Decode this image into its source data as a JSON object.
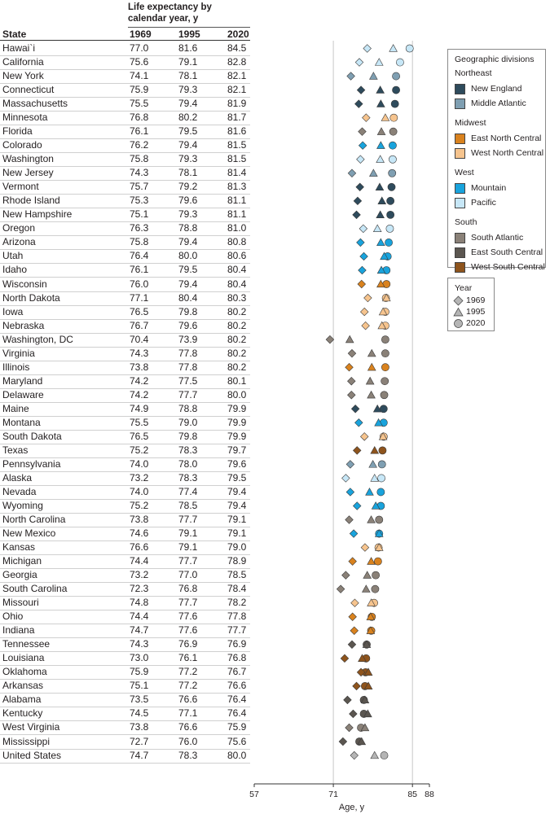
{
  "chart_data": {
    "type": "scatter",
    "table_header": {
      "title": "Life expectancy by calendar year, y",
      "state_col": "State",
      "years": [
        "1969",
        "1995",
        "2020"
      ]
    },
    "xlabel": "Age, y",
    "xticks": [
      "57",
      "71",
      "85",
      "88"
    ],
    "xlim": [
      57,
      88
    ],
    "legend_divisions_title": "Geographic divisions",
    "regions": [
      {
        "name": "Northeast",
        "divisions": [
          {
            "key": "NE",
            "label": "New England",
            "color": "#2e4b5c"
          },
          {
            "key": "MA",
            "label": "Middle Atlantic",
            "color": "#7f9fb2"
          }
        ]
      },
      {
        "name": "Midwest",
        "divisions": [
          {
            "key": "ENC",
            "label": "East North Central",
            "color": "#d9821e"
          },
          {
            "key": "WNC",
            "label": "West North Central",
            "color": "#f6c48e"
          }
        ]
      },
      {
        "name": "West",
        "divisions": [
          {
            "key": "MT",
            "label": "Mountain",
            "color": "#19a3dc"
          },
          {
            "key": "PA",
            "label": "Pacific",
            "color": "#c7e7f7"
          }
        ]
      },
      {
        "name": "South",
        "divisions": [
          {
            "key": "SA",
            "label": "South Atlantic",
            "color": "#8a8178"
          },
          {
            "key": "ESC",
            "label": "East South Central",
            "color": "#5b5650"
          },
          {
            "key": "WSC",
            "label": "West South Central",
            "color": "#8e541d"
          }
        ]
      }
    ],
    "year_legend": {
      "title": "Year",
      "items": [
        "1969",
        "1995",
        "2020"
      ]
    },
    "national_color": "#b5b5b5",
    "rows": [
      {
        "state": "Hawai`i",
        "division": "PA",
        "v1969": 77.0,
        "v1995": 81.6,
        "v2020": 84.5,
        "l1969": "77.0",
        "l1995": "81.6",
        "l2020": "84.5"
      },
      {
        "state": "California",
        "division": "PA",
        "v1969": 75.6,
        "v1995": 79.1,
        "v2020": 82.8,
        "l1969": "75.6",
        "l1995": "79.1",
        "l2020": "82.8"
      },
      {
        "state": "New York",
        "division": "MA",
        "v1969": 74.1,
        "v1995": 78.1,
        "v2020": 82.1,
        "l1969": "74.1",
        "l1995": "78.1",
        "l2020": "82.1"
      },
      {
        "state": "Connecticut",
        "division": "NE",
        "v1969": 75.9,
        "v1995": 79.3,
        "v2020": 82.1,
        "l1969": "75.9",
        "l1995": "79.3",
        "l2020": "82.1"
      },
      {
        "state": "Massachusetts",
        "division": "NE",
        "v1969": 75.5,
        "v1995": 79.4,
        "v2020": 81.9,
        "l1969": "75.5",
        "l1995": "79.4",
        "l2020": "81.9"
      },
      {
        "state": "Minnesota",
        "division": "WNC",
        "v1969": 76.8,
        "v1995": 80.2,
        "v2020": 81.7,
        "l1969": "76.8",
        "l1995": "80.2",
        "l2020": "81.7"
      },
      {
        "state": "Florida",
        "division": "SA",
        "v1969": 76.1,
        "v1995": 79.5,
        "v2020": 81.6,
        "l1969": "76.1",
        "l1995": "79.5",
        "l2020": "81.6"
      },
      {
        "state": "Colorado",
        "division": "MT",
        "v1969": 76.2,
        "v1995": 79.4,
        "v2020": 81.5,
        "l1969": "76.2",
        "l1995": "79.4",
        "l2020": "81.5"
      },
      {
        "state": "Washington",
        "division": "PA",
        "v1969": 75.8,
        "v1995": 79.3,
        "v2020": 81.5,
        "l1969": "75.8",
        "l1995": "79.3",
        "l2020": "81.5"
      },
      {
        "state": "New Jersey",
        "division": "MA",
        "v1969": 74.3,
        "v1995": 78.1,
        "v2020": 81.4,
        "l1969": "74.3",
        "l1995": "78.1",
        "l2020": "81.4"
      },
      {
        "state": "Vermont",
        "division": "NE",
        "v1969": 75.7,
        "v1995": 79.2,
        "v2020": 81.3,
        "l1969": "75.7",
        "l1995": "79.2",
        "l2020": "81.3"
      },
      {
        "state": "Rhode Island",
        "division": "NE",
        "v1969": 75.3,
        "v1995": 79.6,
        "v2020": 81.1,
        "l1969": "75.3",
        "l1995": "79.6",
        "l2020": "81.1"
      },
      {
        "state": "New Hampshire",
        "division": "NE",
        "v1969": 75.1,
        "v1995": 79.3,
        "v2020": 81.1,
        "l1969": "75.1",
        "l1995": "79.3",
        "l2020": "81.1"
      },
      {
        "state": "Oregon",
        "division": "PA",
        "v1969": 76.3,
        "v1995": 78.8,
        "v2020": 81.0,
        "l1969": "76.3",
        "l1995": "78.8",
        "l2020": "81.0"
      },
      {
        "state": "Arizona",
        "division": "MT",
        "v1969": 75.8,
        "v1995": 79.4,
        "v2020": 80.8,
        "l1969": "75.8",
        "l1995": "79.4",
        "l2020": "80.8"
      },
      {
        "state": "Utah",
        "division": "MT",
        "v1969": 76.4,
        "v1995": 80.0,
        "v2020": 80.6,
        "l1969": "76.4",
        "l1995": "80.0",
        "l2020": "80.6"
      },
      {
        "state": "Idaho",
        "division": "MT",
        "v1969": 76.1,
        "v1995": 79.5,
        "v2020": 80.4,
        "l1969": "76.1",
        "l1995": "79.5",
        "l2020": "80.4"
      },
      {
        "state": "Wisconsin",
        "division": "ENC",
        "v1969": 76.0,
        "v1995": 79.4,
        "v2020": 80.4,
        "l1969": "76.0",
        "l1995": "79.4",
        "l2020": "80.4"
      },
      {
        "state": "North Dakota",
        "division": "WNC",
        "v1969": 77.1,
        "v1995": 80.4,
        "v2020": 80.3,
        "l1969": "77.1",
        "l1995": "80.4",
        "l2020": "80.3"
      },
      {
        "state": "Iowa",
        "division": "WNC",
        "v1969": 76.5,
        "v1995": 79.8,
        "v2020": 80.2,
        "l1969": "76.5",
        "l1995": "79.8",
        "l2020": "80.2"
      },
      {
        "state": "Nebraska",
        "division": "WNC",
        "v1969": 76.7,
        "v1995": 79.6,
        "v2020": 80.2,
        "l1969": "76.7",
        "l1995": "79.6",
        "l2020": "80.2"
      },
      {
        "state": "Washington, DC",
        "division": "SA",
        "v1969": 70.4,
        "v1995": 73.9,
        "v2020": 80.2,
        "l1969": "70.4",
        "l1995": "73.9",
        "l2020": "80.2"
      },
      {
        "state": "Virginia",
        "division": "SA",
        "v1969": 74.3,
        "v1995": 77.8,
        "v2020": 80.2,
        "l1969": "74.3",
        "l1995": "77.8",
        "l2020": "80.2"
      },
      {
        "state": "Illinois",
        "division": "ENC",
        "v1969": 73.8,
        "v1995": 77.8,
        "v2020": 80.2,
        "l1969": "73.8",
        "l1995": "77.8",
        "l2020": "80.2"
      },
      {
        "state": "Maryland",
        "division": "SA",
        "v1969": 74.2,
        "v1995": 77.5,
        "v2020": 80.1,
        "l1969": "74.2",
        "l1995": "77.5",
        "l2020": "80.1"
      },
      {
        "state": "Delaware",
        "division": "SA",
        "v1969": 74.2,
        "v1995": 77.7,
        "v2020": 80.0,
        "l1969": "74.2",
        "l1995": "77.7",
        "l2020": "80.0"
      },
      {
        "state": "Maine",
        "division": "NE",
        "v1969": 74.9,
        "v1995": 78.8,
        "v2020": 79.9,
        "l1969": "74.9",
        "l1995": "78.8",
        "l2020": "79.9"
      },
      {
        "state": "Montana",
        "division": "MT",
        "v1969": 75.5,
        "v1995": 79.0,
        "v2020": 79.9,
        "l1969": "75.5",
        "l1995": "79.0",
        "l2020": "79.9"
      },
      {
        "state": "South Dakota",
        "division": "WNC",
        "v1969": 76.5,
        "v1995": 79.8,
        "v2020": 79.9,
        "l1969": "76.5",
        "l1995": "79.8",
        "l2020": "79.9"
      },
      {
        "state": "Texas",
        "division": "WSC",
        "v1969": 75.2,
        "v1995": 78.3,
        "v2020": 79.7,
        "l1969": "75.2",
        "l1995": "78.3",
        "l2020": "79.7"
      },
      {
        "state": "Pennsylvania",
        "division": "MA",
        "v1969": 74.0,
        "v1995": 78.0,
        "v2020": 79.6,
        "l1969": "74.0",
        "l1995": "78.0",
        "l2020": "79.6"
      },
      {
        "state": "Alaska",
        "division": "PA",
        "v1969": 73.2,
        "v1995": 78.3,
        "v2020": 79.5,
        "l1969": "73.2",
        "l1995": "78.3",
        "l2020": "79.5"
      },
      {
        "state": "Nevada",
        "division": "MT",
        "v1969": 74.0,
        "v1995": 77.4,
        "v2020": 79.4,
        "l1969": "74.0",
        "l1995": "77.4",
        "l2020": "79.4"
      },
      {
        "state": "Wyoming",
        "division": "MT",
        "v1969": 75.2,
        "v1995": 78.5,
        "v2020": 79.4,
        "l1969": "75.2",
        "l1995": "78.5",
        "l2020": "79.4"
      },
      {
        "state": "North Carolina",
        "division": "SA",
        "v1969": 73.8,
        "v1995": 77.7,
        "v2020": 79.1,
        "l1969": "73.8",
        "l1995": "77.7",
        "l2020": "79.1"
      },
      {
        "state": "New Mexico",
        "division": "MT",
        "v1969": 74.6,
        "v1995": 79.1,
        "v2020": 79.1,
        "l1969": "74.6",
        "l1995": "79.1",
        "l2020": "79.1"
      },
      {
        "state": "Kansas",
        "division": "WNC",
        "v1969": 76.6,
        "v1995": 79.1,
        "v2020": 79.0,
        "l1969": "76.6",
        "l1995": "79.1",
        "l2020": "79.0"
      },
      {
        "state": "Michigan",
        "division": "ENC",
        "v1969": 74.4,
        "v1995": 77.7,
        "v2020": 78.9,
        "l1969": "74.4",
        "l1995": "77.7",
        "l2020": "78.9"
      },
      {
        "state": "Georgia",
        "division": "SA",
        "v1969": 73.2,
        "v1995": 77.0,
        "v2020": 78.5,
        "l1969": "73.2",
        "l1995": "77.0",
        "l2020": "78.5"
      },
      {
        "state": "South Carolina",
        "division": "SA",
        "v1969": 72.3,
        "v1995": 76.8,
        "v2020": 78.4,
        "l1969": "72.3",
        "l1995": "76.8",
        "l2020": "78.4"
      },
      {
        "state": "Missouri",
        "division": "WNC",
        "v1969": 74.8,
        "v1995": 77.7,
        "v2020": 78.2,
        "l1969": "74.8",
        "l1995": "77.7",
        "l2020": "78.2"
      },
      {
        "state": "Ohio",
        "division": "ENC",
        "v1969": 74.4,
        "v1995": 77.6,
        "v2020": 77.8,
        "l1969": "74.4",
        "l1995": "77.6",
        "l2020": "77.8"
      },
      {
        "state": "Indiana",
        "division": "ENC",
        "v1969": 74.7,
        "v1995": 77.6,
        "v2020": 77.7,
        "l1969": "74.7",
        "l1995": "77.6",
        "l2020": "77.7"
      },
      {
        "state": "Tennessee",
        "division": "ESC",
        "v1969": 74.3,
        "v1995": 76.9,
        "v2020": 76.9,
        "l1969": "74.3",
        "l1995": "76.9",
        "l2020": "76.9"
      },
      {
        "state": "Louisiana",
        "division": "WSC",
        "v1969": 73.0,
        "v1995": 76.1,
        "v2020": 76.8,
        "l1969": "73.0",
        "l1995": "76.1",
        "l2020": "76.8"
      },
      {
        "state": "Oklahoma",
        "division": "WSC",
        "v1969": 75.9,
        "v1995": 77.2,
        "v2020": 76.7,
        "l1969": "75.9",
        "l1995": "77.2",
        "l2020": "76.7"
      },
      {
        "state": "Arkansas",
        "division": "WSC",
        "v1969": 75.1,
        "v1995": 77.2,
        "v2020": 76.6,
        "l1969": "75.1",
        "l1995": "77.2",
        "l2020": "76.6"
      },
      {
        "state": "Alabama",
        "division": "ESC",
        "v1969": 73.5,
        "v1995": 76.6,
        "v2020": 76.4,
        "l1969": "73.5",
        "l1995": "76.6",
        "l2020": "76.4"
      },
      {
        "state": "Kentucky",
        "division": "ESC",
        "v1969": 74.5,
        "v1995": 77.1,
        "v2020": 76.4,
        "l1969": "74.5",
        "l1995": "77.1",
        "l2020": "76.4"
      },
      {
        "state": "West Virginia",
        "division": "SA",
        "v1969": 73.8,
        "v1995": 76.6,
        "v2020": 75.9,
        "l1969": "73.8",
        "l1995": "76.6",
        "l2020": "75.9"
      },
      {
        "state": "Mississippi",
        "division": "ESC",
        "v1969": 72.7,
        "v1995": 76.0,
        "v2020": 75.6,
        "l1969": "72.7",
        "l1995": "76.0",
        "l2020": "75.6"
      },
      {
        "state": "United States",
        "division": "US",
        "v1969": 74.7,
        "v1995": 78.3,
        "v2020": 80.0,
        "l1969": "74.7",
        "l1995": "78.3",
        "l2020": "80.0"
      }
    ]
  }
}
